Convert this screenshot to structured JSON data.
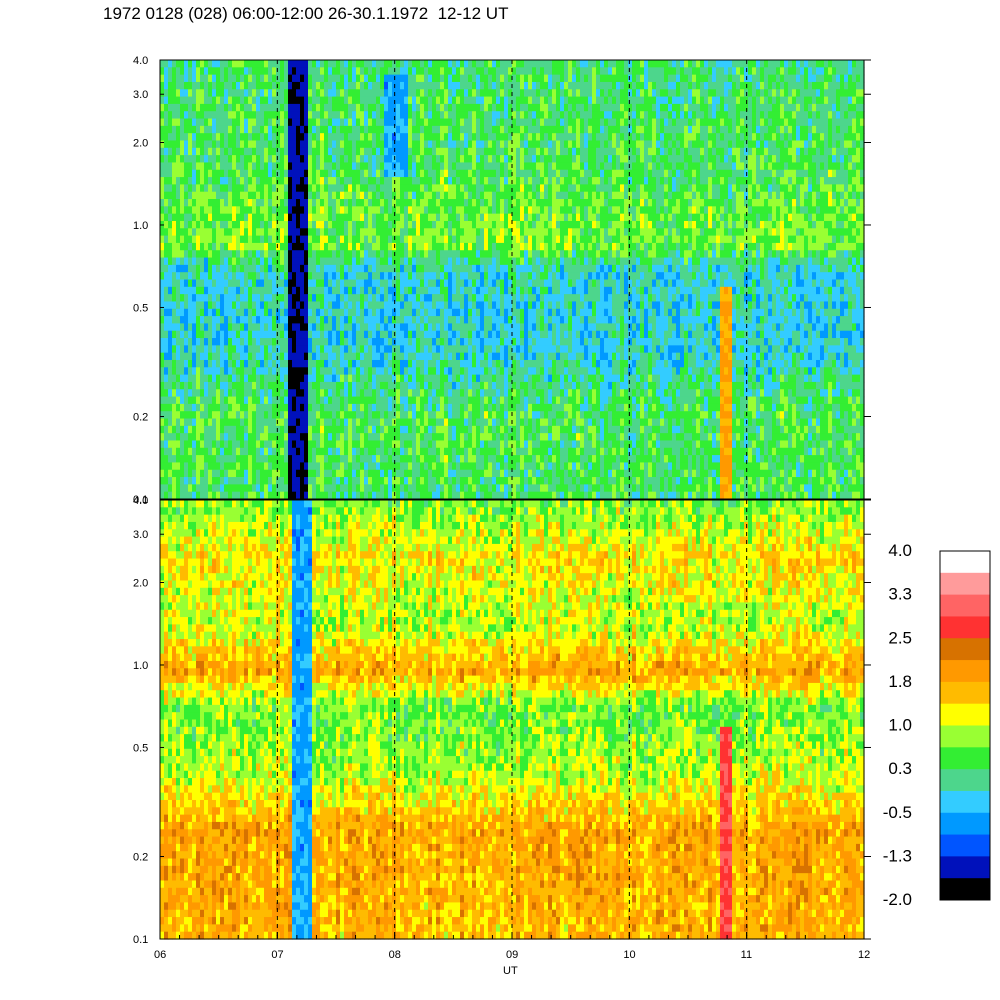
{
  "title": "1972 0128 (028) 06:00-12:00 26-30.1.1972  12-12 UT",
  "chart_data": {
    "type": "heatmap",
    "xlabel": "UT",
    "x_ticks": [
      "06",
      "07",
      "08",
      "09",
      "10",
      "11",
      "12"
    ],
    "xlim": [
      6,
      12
    ],
    "y_scale": "log",
    "ylim": [
      0.1,
      4.0
    ],
    "y_ticks": [
      "0.1",
      "0.2",
      "0.5",
      "1.0",
      "2.0",
      "3.0",
      "4.0"
    ],
    "dashed_vlines": [
      7,
      8,
      9,
      10,
      11
    ],
    "colorbar": {
      "labels": [
        "4.0",
        "3.3",
        "2.5",
        "1.8",
        "1.0",
        "0.3",
        "-0.5",
        "-1.3",
        "-2.0"
      ],
      "colors": [
        "#ffffff",
        "#ff9b9b",
        "#ff6464",
        "#ff3232",
        "#d77200",
        "#ff9900",
        "#ffbb00",
        "#ffff00",
        "#99ff33",
        "#33ee33",
        "#4dd68c",
        "#33ccff",
        "#0099ff",
        "#0055ff",
        "#0011bb",
        "#000000"
      ]
    },
    "panels": [
      {
        "name": "top",
        "baseline_profile": [
          {
            "freq": 0.1,
            "level": 0.3
          },
          {
            "freq": 0.2,
            "level": 0.4
          },
          {
            "freq": 0.35,
            "level": -0.2
          },
          {
            "freq": 0.7,
            "level": -0.1
          },
          {
            "freq": 0.85,
            "level": 0.7
          },
          {
            "freq": 1.5,
            "level": 0.4
          },
          {
            "freq": 2.5,
            "level": 0.3
          },
          {
            "freq": 4.0,
            "level": 0.2
          }
        ],
        "features": [
          {
            "x_start": 7.1,
            "x_end": 7.25,
            "freq_min": 0.1,
            "freq_max": 4.0,
            "level": -1.6
          },
          {
            "x_start": 7.9,
            "x_end": 8.1,
            "freq_min": 1.5,
            "freq_max": 3.5,
            "level": -0.6
          },
          {
            "x_start": 10.78,
            "x_end": 10.88,
            "freq_min": 0.1,
            "freq_max": 0.6,
            "level": 1.8
          }
        ]
      },
      {
        "name": "bottom",
        "baseline_profile": [
          {
            "freq": 0.1,
            "level": 1.6
          },
          {
            "freq": 0.25,
            "level": 1.8
          },
          {
            "freq": 0.4,
            "level": 0.9
          },
          {
            "freq": 0.7,
            "level": 0.6
          },
          {
            "freq": 0.95,
            "level": 1.8
          },
          {
            "freq": 1.4,
            "level": 0.9
          },
          {
            "freq": 2.5,
            "level": 1.3
          },
          {
            "freq": 4.0,
            "level": 0.6
          }
        ],
        "features": [
          {
            "x_start": 7.12,
            "x_end": 7.28,
            "freq_min": 0.1,
            "freq_max": 4.0,
            "level": -0.6
          },
          {
            "x_start": 10.78,
            "x_end": 10.88,
            "freq_min": 0.1,
            "freq_max": 0.6,
            "level": 2.8
          }
        ]
      }
    ]
  }
}
